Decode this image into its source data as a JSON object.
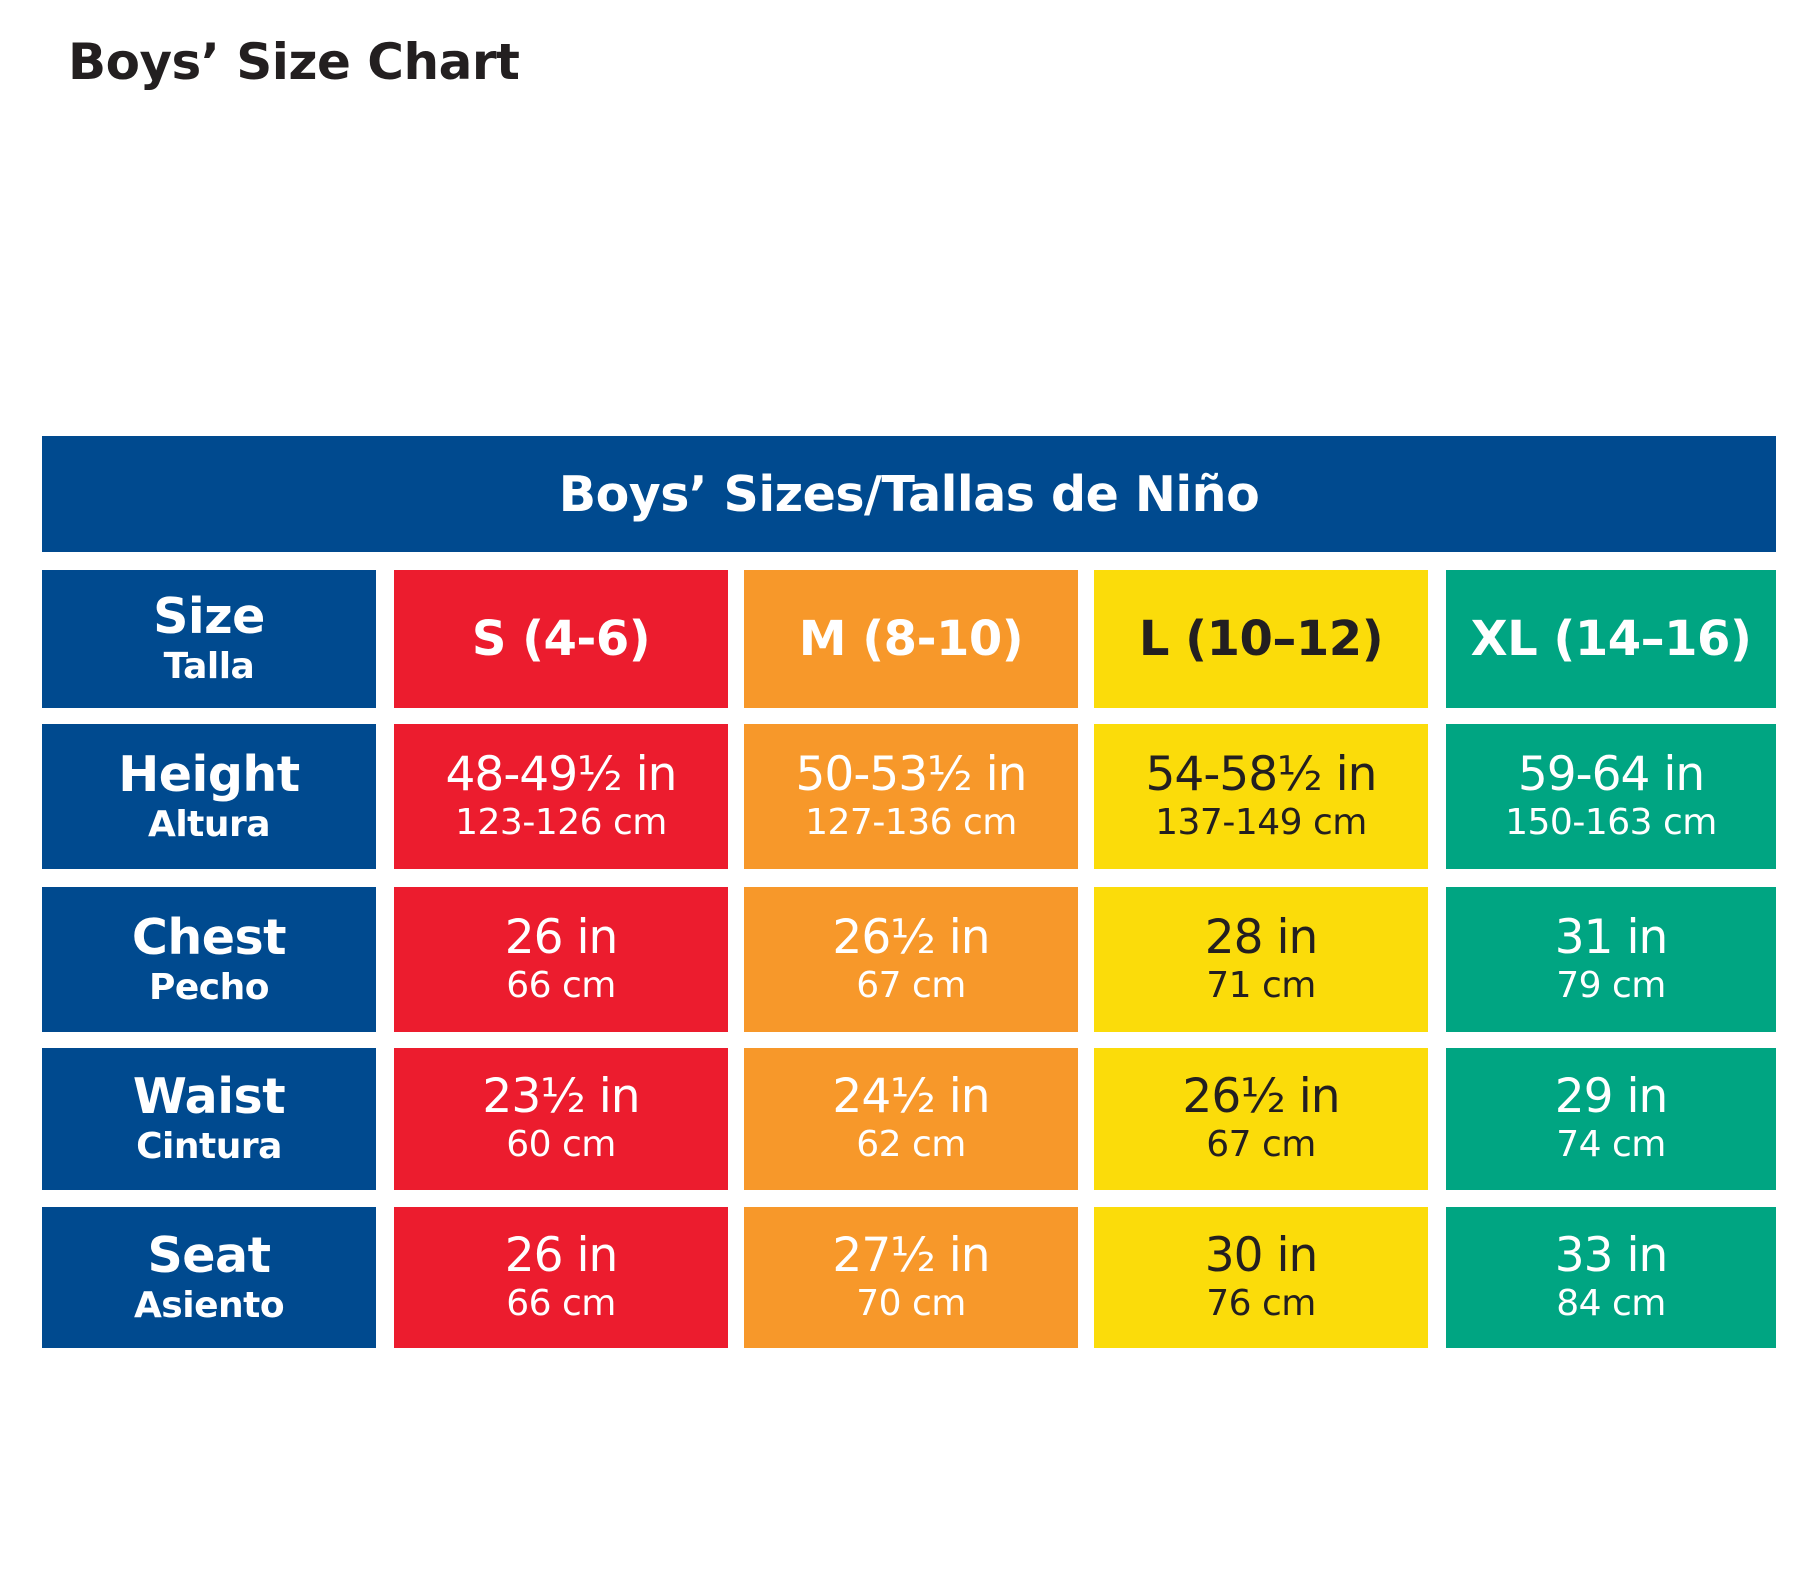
{
  "page_title": "Boys’ Size Chart",
  "banner_title": "Boys’ Sizes/Tallas de Niño",
  "colors": {
    "banner": "#004a8f",
    "label_cells": "#004a8f",
    "S": "#ec1c2e",
    "M": "#f7982a",
    "L": "#fbdc0a",
    "XL": "#00a582"
  },
  "header_row": {
    "label": "Size",
    "label_sub": "Talla",
    "sizes": [
      "S (4-6)",
      "M (8-10)",
      "L (10–12)",
      "XL (14–16)"
    ]
  },
  "rows": [
    {
      "label": "Height",
      "label_sub": "Altura",
      "values": [
        {
          "in": "48-49½ in",
          "cm": "123-126 cm"
        },
        {
          "in": "50-53½ in",
          "cm": "127-136 cm"
        },
        {
          "in": "54-58½ in",
          "cm": "137-149 cm"
        },
        {
          "in": "59-64 in",
          "cm": "150-163 cm"
        }
      ]
    },
    {
      "label": "Chest",
      "label_sub": "Pecho",
      "values": [
        {
          "in": "26 in",
          "cm": "66 cm"
        },
        {
          "in": "26½ in",
          "cm": "67 cm"
        },
        {
          "in": "28 in",
          "cm": "71 cm"
        },
        {
          "in": "31 in",
          "cm": "79 cm"
        }
      ]
    },
    {
      "label": "Waist",
      "label_sub": "Cintura",
      "values": [
        {
          "in": "23½ in",
          "cm": "60 cm"
        },
        {
          "in": "24½ in",
          "cm": "62 cm"
        },
        {
          "in": "26½ in",
          "cm": "67 cm"
        },
        {
          "in": "29 in",
          "cm": "74 cm"
        }
      ]
    },
    {
      "label": "Seat",
      "label_sub": "Asiento",
      "values": [
        {
          "in": "26 in",
          "cm": "66 cm"
        },
        {
          "in": "27½ in",
          "cm": "70 cm"
        },
        {
          "in": "30 in",
          "cm": "76 cm"
        },
        {
          "in": "33 in",
          "cm": "84 cm"
        }
      ]
    }
  ]
}
